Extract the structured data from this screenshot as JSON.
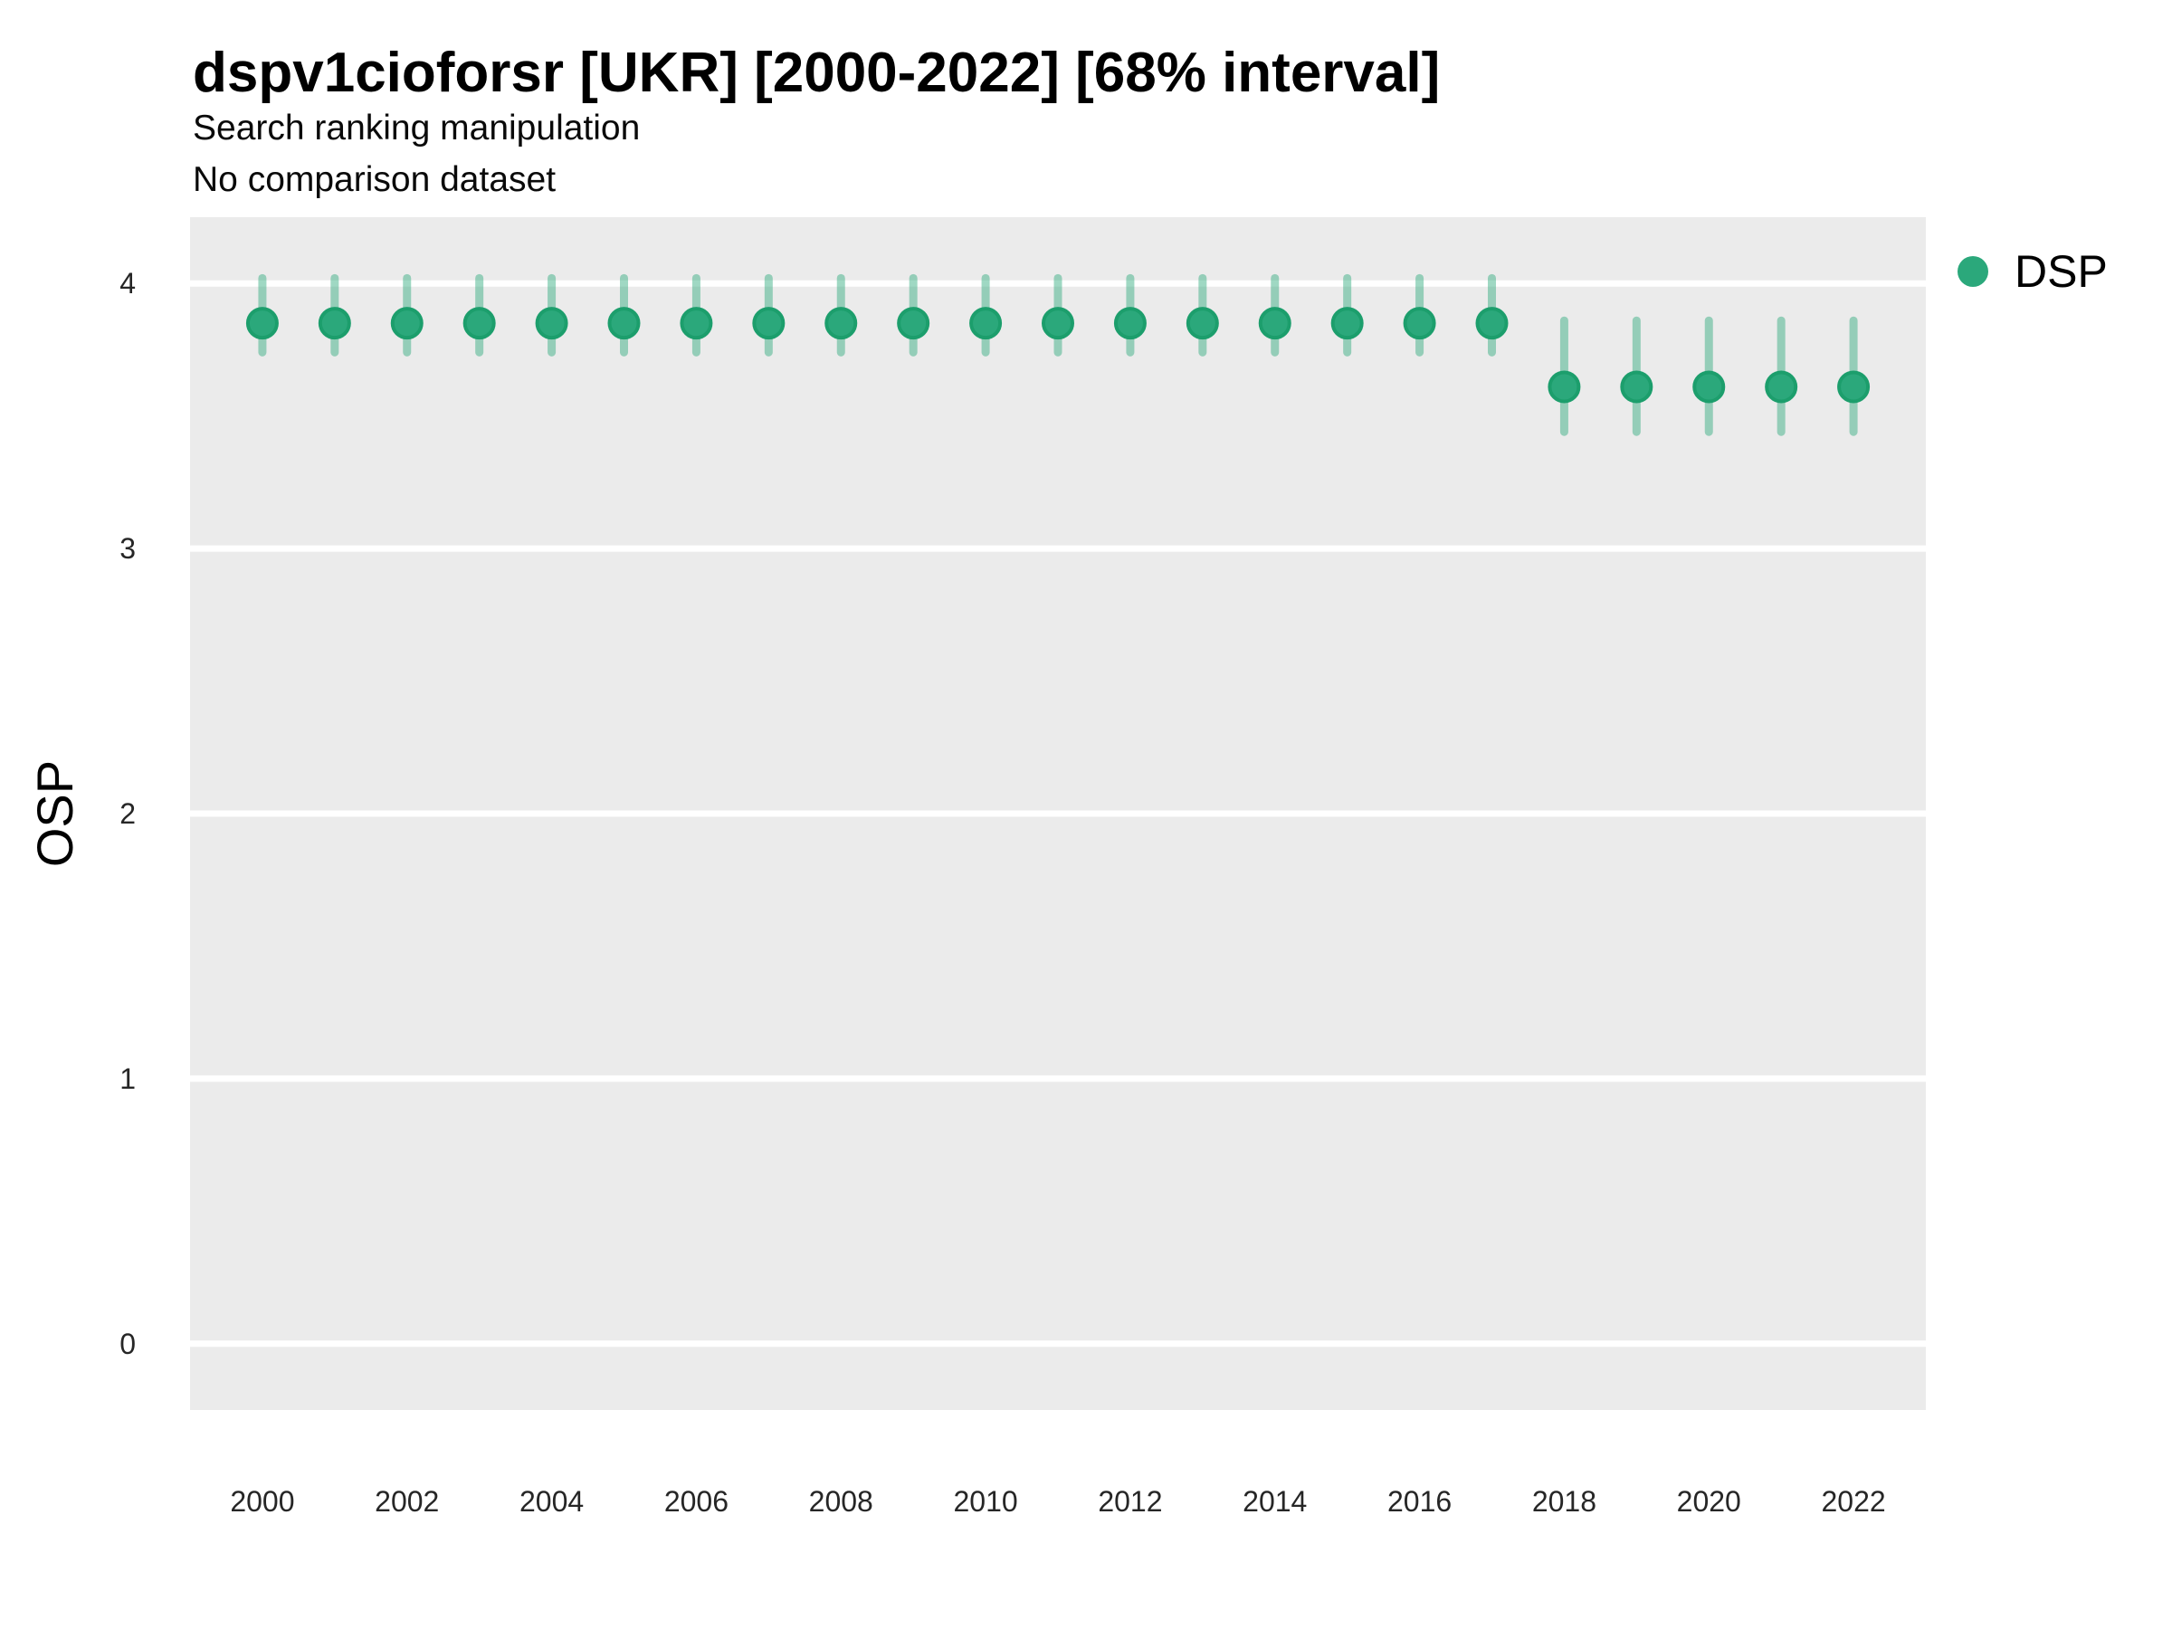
{
  "title": "dspv1cioforsr [UKR] [2000-2022] [68% interval]",
  "subtitle_line1": "Search ranking manipulation",
  "subtitle_line2": "No comparison dataset",
  "y_axis_label": "OSP",
  "legend": {
    "label": "DSP"
  },
  "colors": {
    "point": "#2BA87B",
    "point_stroke": "#1C9E6C",
    "interval": "rgba(42,168,123,0.45)",
    "panel": "#EBEBEB",
    "gridline": "#FFFFFF",
    "tick_text": "#262626"
  },
  "chart_data": {
    "type": "scatter",
    "title": "dspv1cioforsr [UKR] [2000-2022] [68% interval]",
    "subtitle": "Search ranking manipulation / No comparison dataset",
    "xlabel": "",
    "ylabel": "OSP",
    "xlim": [
      1999,
      2023
    ],
    "ylim": [
      -0.25,
      4.25
    ],
    "x_ticks": [
      2000,
      2002,
      2004,
      2006,
      2008,
      2010,
      2012,
      2014,
      2016,
      2018,
      2020,
      2022
    ],
    "y_ticks": [
      0,
      1,
      2,
      3,
      4
    ],
    "grid": "horizontal-major-only",
    "legend_position": "right",
    "interval_level": "68%",
    "series": [
      {
        "name": "DSP",
        "points": [
          {
            "x": 2000,
            "y": 3.85,
            "lo": 3.74,
            "hi": 4.02
          },
          {
            "x": 2001,
            "y": 3.85,
            "lo": 3.74,
            "hi": 4.02
          },
          {
            "x": 2002,
            "y": 3.85,
            "lo": 3.74,
            "hi": 4.02
          },
          {
            "x": 2003,
            "y": 3.85,
            "lo": 3.74,
            "hi": 4.02
          },
          {
            "x": 2004,
            "y": 3.85,
            "lo": 3.74,
            "hi": 4.02
          },
          {
            "x": 2005,
            "y": 3.85,
            "lo": 3.74,
            "hi": 4.02
          },
          {
            "x": 2006,
            "y": 3.85,
            "lo": 3.74,
            "hi": 4.02
          },
          {
            "x": 2007,
            "y": 3.85,
            "lo": 3.74,
            "hi": 4.02
          },
          {
            "x": 2008,
            "y": 3.85,
            "lo": 3.74,
            "hi": 4.02
          },
          {
            "x": 2009,
            "y": 3.85,
            "lo": 3.74,
            "hi": 4.02
          },
          {
            "x": 2010,
            "y": 3.85,
            "lo": 3.74,
            "hi": 4.02
          },
          {
            "x": 2011,
            "y": 3.85,
            "lo": 3.74,
            "hi": 4.02
          },
          {
            "x": 2012,
            "y": 3.85,
            "lo": 3.74,
            "hi": 4.02
          },
          {
            "x": 2013,
            "y": 3.85,
            "lo": 3.74,
            "hi": 4.02
          },
          {
            "x": 2014,
            "y": 3.85,
            "lo": 3.74,
            "hi": 4.02
          },
          {
            "x": 2015,
            "y": 3.85,
            "lo": 3.74,
            "hi": 4.02
          },
          {
            "x": 2016,
            "y": 3.85,
            "lo": 3.74,
            "hi": 4.02
          },
          {
            "x": 2017,
            "y": 3.85,
            "lo": 3.74,
            "hi": 4.02
          },
          {
            "x": 2018,
            "y": 3.61,
            "lo": 3.44,
            "hi": 3.86
          },
          {
            "x": 2019,
            "y": 3.61,
            "lo": 3.44,
            "hi": 3.86
          },
          {
            "x": 2020,
            "y": 3.61,
            "lo": 3.44,
            "hi": 3.86
          },
          {
            "x": 2021,
            "y": 3.61,
            "lo": 3.44,
            "hi": 3.86
          },
          {
            "x": 2022,
            "y": 3.61,
            "lo": 3.44,
            "hi": 3.86
          }
        ]
      }
    ]
  }
}
